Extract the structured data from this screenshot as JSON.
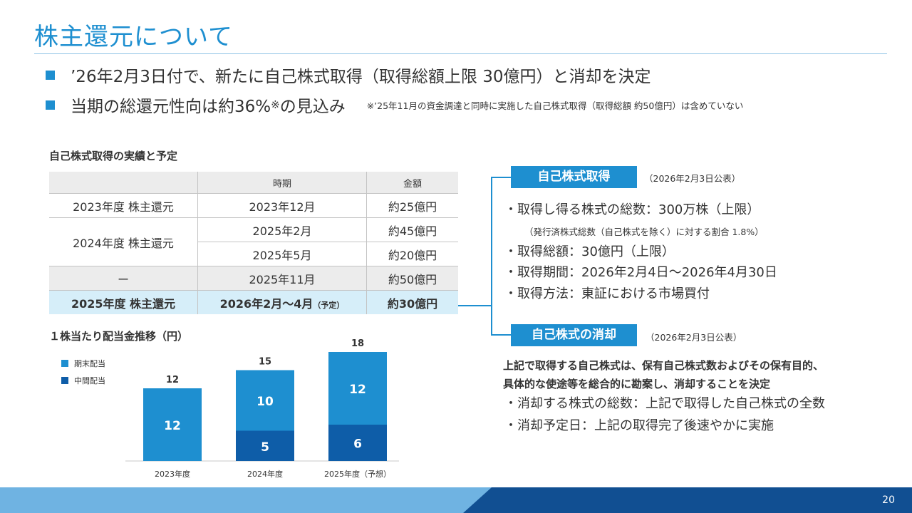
{
  "title": "株主還元について",
  "bullets": {
    "b1": "’26年2月3日付で、新たに自己株式取得（取得総額上限 30億円）と消却を決定",
    "b2_main": "当期の総還元性向は約36%",
    "b2_mark": "※",
    "b2_tail": "の見込み",
    "b2_note": "※’25年11月の資金調達と同時に実施した自己株式取得（取得総額 約50億円）は含めていない"
  },
  "table": {
    "heading": "自己株式取得の実績と予定",
    "col_period": "時期",
    "col_amount": "金額",
    "rows": [
      {
        "label": "2023年度 株主還元",
        "period": "2023年12月",
        "amount": "約25億円"
      },
      {
        "label": "2024年度 株主還元",
        "period": "2025年2月",
        "amount": "約45億円"
      },
      {
        "label": "",
        "period": "2025年5月",
        "amount": "約20億円"
      },
      {
        "label": "ー",
        "period": "2025年11月",
        "amount": "約50億円"
      },
      {
        "label": "2025年度 株主還元",
        "period": "2026年2月～4月",
        "period_note": "（予定）",
        "amount": "約30億円"
      }
    ]
  },
  "acquisition": {
    "header": "自己株式取得",
    "published": "（2026年2月3日公表）",
    "line1": "・取得し得る株式の総数：300万株（上限）",
    "line1_note": "（発行済株式総数（自己株式を除く）に対する割合 1.8%）",
    "line2": "・取得総額：30億円（上限）",
    "line3": "・取得期間：2026年2月4日～2026年4月30日",
    "line4": "・取得方法：東証における市場買付"
  },
  "cancellation": {
    "header": "自己株式の消却",
    "published": "（2026年2月3日公表）",
    "bold1": "上記で取得する自己株式は、保有自己株式数およびその保有目的、",
    "bold2": "具体的な使途等を総合的に勘案し、消却することを決定",
    "line1": "・消却する株式の総数：上記で取得した自己株式の全数",
    "line2": "・消却予定日：上記の取得完了後速やかに実施"
  },
  "chart_data": {
    "type": "bar",
    "title": "１株当たり配当金推移（円）",
    "categories": [
      "2023年度",
      "2024年度",
      "2025年度（予想）"
    ],
    "series": [
      {
        "name": "中間配当",
        "values": [
          0,
          5,
          6
        ],
        "color": "#0e5da8"
      },
      {
        "name": "期末配当",
        "values": [
          12,
          10,
          12
        ],
        "color": "#1e8fd0"
      }
    ],
    "totals": [
      12,
      15,
      18
    ],
    "ylim": [
      0,
      18
    ]
  },
  "page_number": "20"
}
